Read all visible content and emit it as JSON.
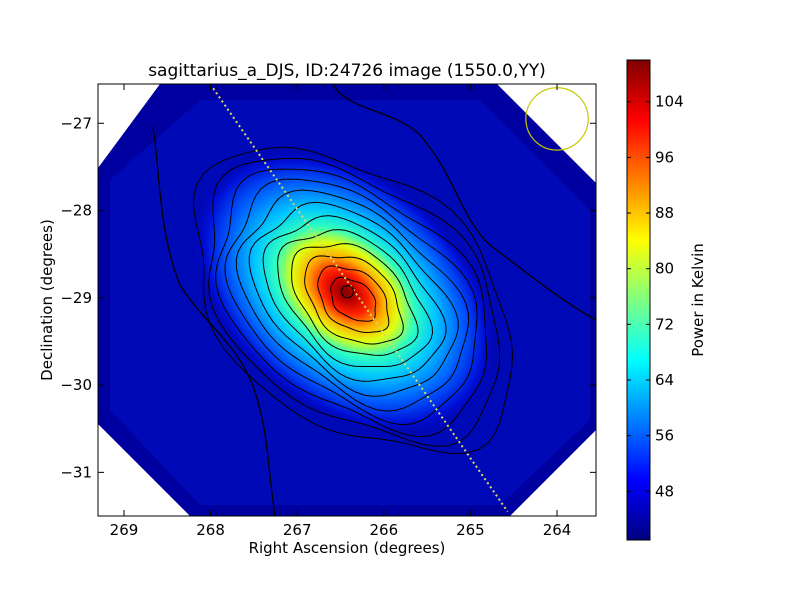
{
  "chart_data": {
    "type": "heatmap",
    "title": "sagittarius_a_DJS, ID:24726 image (1550.0,YY)",
    "xlabel": "Right Ascension (degrees)",
    "ylabel": "Declination (degrees)",
    "xlim": [
      269.3,
      263.55
    ],
    "ylim": [
      -31.5,
      -26.55
    ],
    "x_ticks": [
      "269",
      "268",
      "267",
      "266",
      "265",
      "264"
    ],
    "x_tick_values": [
      269,
      268,
      267,
      266,
      265,
      264
    ],
    "y_ticks": [
      "−27",
      "−28",
      "−29",
      "−30",
      "−31"
    ],
    "y_tick_values": [
      -27,
      -28,
      -29,
      -30,
      -31
    ],
    "colorbar": {
      "label": "Power in Kelvin",
      "range": [
        41,
        110
      ],
      "ticks": [
        "48",
        "56",
        "64",
        "72",
        "80",
        "88",
        "96",
        "104"
      ],
      "tick_values": [
        48,
        56,
        64,
        72,
        80,
        88,
        96,
        104
      ],
      "colormap": "jet"
    },
    "source": {
      "ra": 266.42,
      "dec": -28.93,
      "peak_power": 108,
      "background_power": 44
    },
    "contour_levels": [
      46,
      51,
      57,
      62,
      67,
      72,
      77,
      82,
      87,
      92,
      97,
      102,
      107
    ],
    "galactic_plane_line": {
      "from": [
        267.97,
        -26.6
      ],
      "to": [
        264.57,
        -31.45
      ],
      "color": "#d8d86a",
      "style": "dotted"
    },
    "beam_circle": {
      "ra": 264.0,
      "dec": -26.95,
      "radius_deg": 0.36,
      "color": "#c8c800"
    }
  }
}
